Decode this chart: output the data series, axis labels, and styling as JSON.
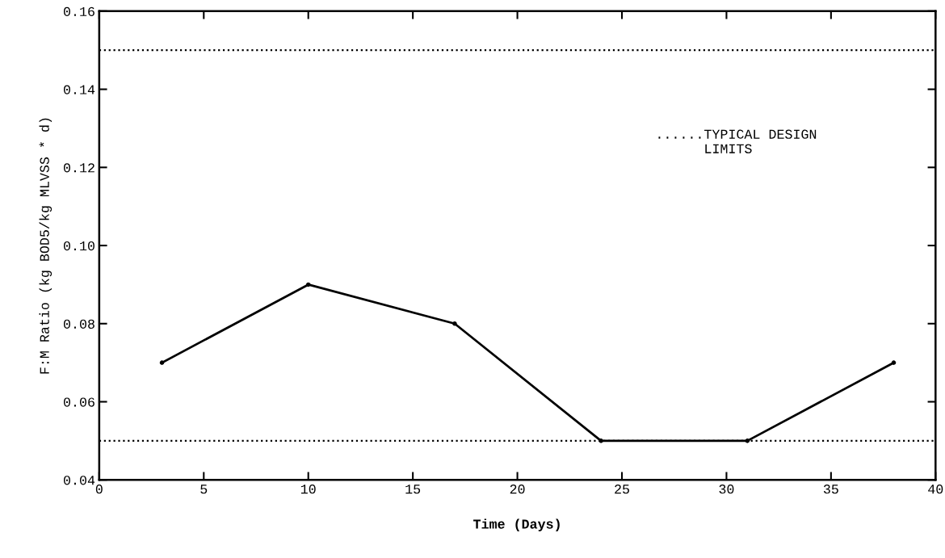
{
  "chart_data": {
    "type": "line",
    "xlabel": "Time (Days)",
    "ylabel": "F:M Ratio (kg BOD5/kg MLVSS * d)",
    "x": [
      3,
      10,
      17,
      24,
      31,
      38
    ],
    "series": [
      {
        "color": "#000000",
        "values": [
          0.07,
          0.09,
          0.08,
          0.05,
          0.05,
          0.07
        ]
      }
    ],
    "xlim": [
      0,
      40
    ],
    "xticks": [
      0,
      5,
      10,
      15,
      20,
      25,
      30,
      35,
      40
    ],
    "ylim": [
      0.04,
      0.16
    ],
    "yticks": [
      0.04,
      0.06,
      0.08,
      {
        "value": 0.1,
        "label": "0.10"
      },
      0.12,
      0.14,
      0.16
    ],
    "ref_lines": [
      {
        "axis": "y",
        "value": 0.15,
        "color": "#000000",
        "line_style": "dotted"
      },
      {
        "axis": "y",
        "value": 0.05,
        "color": "#000000",
        "line_style": "dotted"
      }
    ],
    "annotations": [
      "......TYPICAL DESIGN\n      LIMITS"
    ],
    "grid": false,
    "legend": false,
    "marker": "circle",
    "line_style": "solid"
  }
}
